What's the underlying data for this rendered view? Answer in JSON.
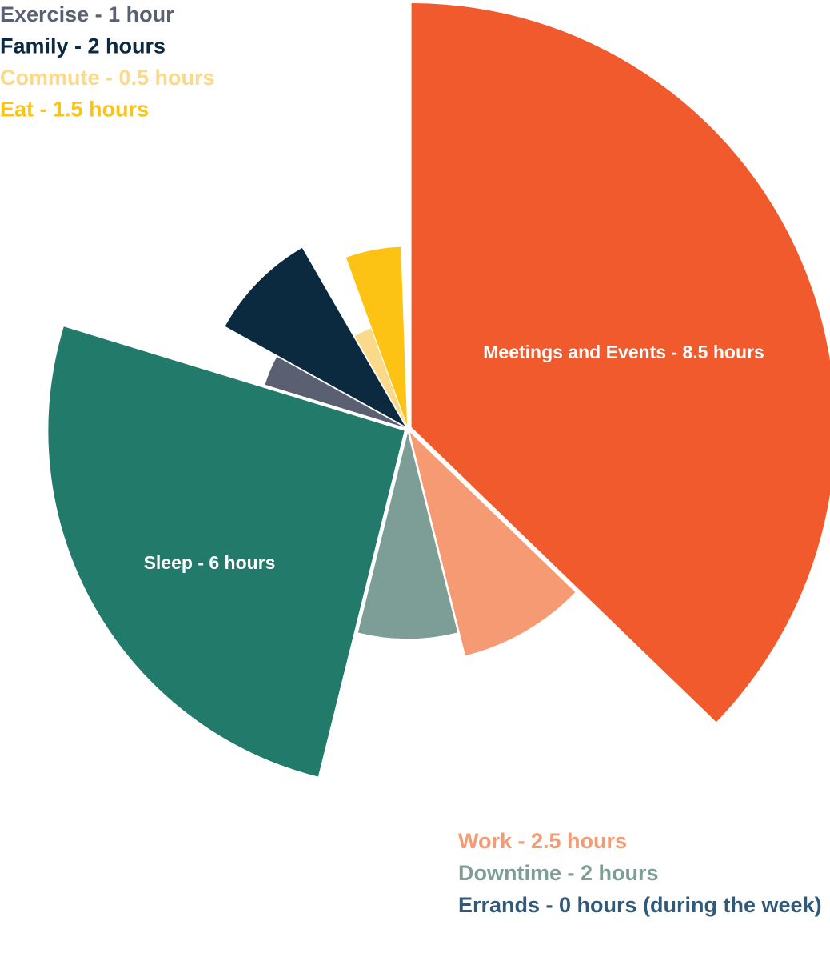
{
  "chart_data": {
    "type": "pie",
    "variant": "polar-area (radius varies by value)",
    "unit": "hours",
    "slices": [
      {
        "name": "Meetings and Events",
        "value": 8.5,
        "label": "Meetings and Events - 8.5 hours",
        "color": "#F05A2C",
        "label_on_slice": true
      },
      {
        "name": "Work",
        "value": 2.5,
        "label": "Work - 2.5 hours",
        "color": "#F59A72",
        "label_on_slice": false
      },
      {
        "name": "Downtime",
        "value": 2,
        "label": "Downtime - 2 hours",
        "color": "#7D9E96",
        "label_on_slice": false
      },
      {
        "name": "Sleep",
        "value": 6,
        "label": "Sleep - 6 hours",
        "color": "#227A6B",
        "label_on_slice": true
      },
      {
        "name": "Exercise",
        "value": 1,
        "label": "Exercise - 1 hour",
        "color": "#5A6072",
        "label_on_slice": false
      },
      {
        "name": "Family",
        "value": 2,
        "label": "Family - 2 hours",
        "color": "#0B2A40",
        "label_on_slice": false
      },
      {
        "name": "Commute",
        "value": 0.5,
        "label": "Commute - 0.5 hours",
        "color": "#FAD98A",
        "label_on_slice": false
      },
      {
        "name": "Eat",
        "value": 1.5,
        "label": "Eat - 1.5 hours",
        "color": "#FDC314",
        "label_on_slice": false
      },
      {
        "name": "Errands",
        "value": 0,
        "label": "Errands - 0 hours (during the week)",
        "color": "#30597A",
        "label_on_slice": false
      }
    ],
    "legend_top_left": [
      {
        "text": "Exercise - 1 hour",
        "color": "#5A6072"
      },
      {
        "text": "Family - 2 hours",
        "color": "#0B2A40"
      },
      {
        "text": "Commute - 0.5 hours",
        "color": "#FAD98A"
      },
      {
        "text": "Eat - 1.5 hours",
        "color": "#FDC314"
      }
    ],
    "legend_bottom_right": [
      {
        "text": "Work - 2.5 hours",
        "color": "#F59A72"
      },
      {
        "text": "Downtime - 2 hours",
        "color": "#7D9E96"
      },
      {
        "text": "Errands - 0 hours (during the week)",
        "color": "#30597A"
      }
    ]
  }
}
